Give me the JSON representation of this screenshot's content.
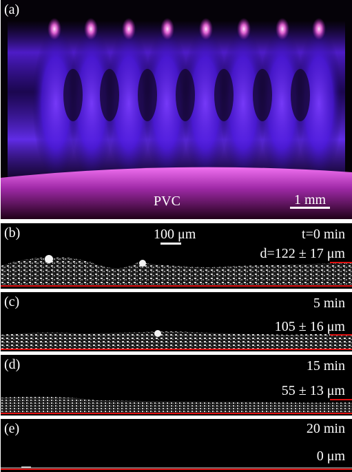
{
  "panel_a": {
    "label": "(a)",
    "sample_label": "PVC",
    "scale_label": "1 mm"
  },
  "panel_b": {
    "label": "(b)",
    "scale_label": "100 μm",
    "time": "t=0 min",
    "thickness": "d=122 ± 17 μm"
  },
  "panel_c": {
    "label": "(c)",
    "time": "5 min",
    "thickness": "105 ± 16 μm"
  },
  "panel_d": {
    "label": "(d)",
    "time": "15 min",
    "thickness": "55 ± 13 μm"
  },
  "panel_e": {
    "label": "(e)",
    "time": "20 min",
    "thickness": "0 μm"
  },
  "colors": {
    "plasma": "#6a2cff",
    "plasma_tip": "#ff7cf0",
    "surface": "#d040d0",
    "baseline": "#e01010"
  }
}
